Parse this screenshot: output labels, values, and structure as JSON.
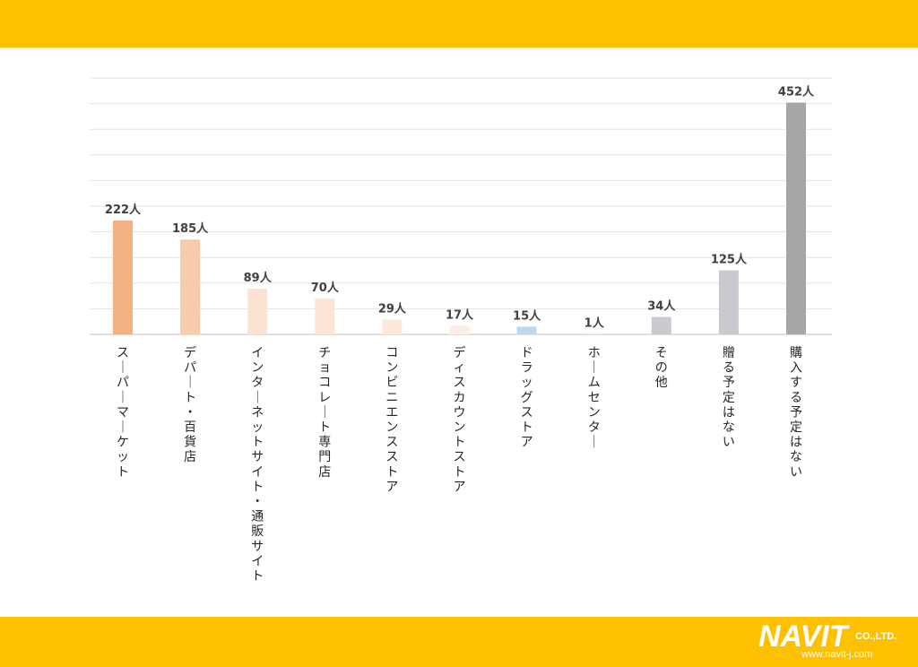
{
  "chart_data": {
    "type": "bar",
    "categories": [
      "スーパーマーケット",
      "デパート・百貨店",
      "インターネットサイト・通販サイト",
      "チョコレート専門店",
      "コンビニエンスストア",
      "ディスカウントストア",
      "ドラッグストア",
      "ホームセンター",
      "その他",
      "贈る予定はない",
      "購入する予定はない"
    ],
    "values": [
      222,
      185,
      89,
      70,
      29,
      17,
      15,
      1,
      34,
      125,
      452
    ],
    "value_labels": [
      "222人",
      "185人",
      "89人",
      "70人",
      "29人",
      "17人",
      "15人",
      "1人",
      "34人",
      "125人",
      "452人"
    ],
    "bar_colors": [
      "#f4b183",
      "#f8cbad",
      "#fbe3d3",
      "#fce4d6",
      "#fce9dc",
      "#fdeee5",
      "#bdd7ee",
      "#d9d9d9",
      "#c9c9d0",
      "#c9c9d0",
      "#a6a6a6"
    ],
    "ylim": [
      0,
      500
    ],
    "grid": true,
    "title": "",
    "xlabel": "",
    "ylabel": ""
  },
  "logo": {
    "name": "NAVIT",
    "suffix": "CO.,LTD.",
    "url": "www.navit-j.com"
  }
}
